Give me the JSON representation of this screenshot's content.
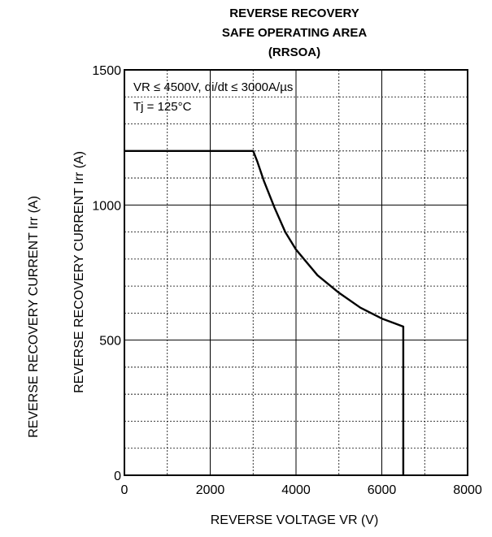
{
  "chart_data": {
    "type": "line",
    "title": [
      "REVERSE RECOVERY",
      "SAFE OPERATING AREA",
      "(RRSOA)"
    ],
    "xlabel": "REVERSE VOLTAGE VR (V)",
    "ylabel": "REVERSE RECOVERY CURRENT Irr (A)",
    "ylabel_outer": "REVERSE RECOVERY CURRENT Irr (A)",
    "xlim": [
      0,
      8000
    ],
    "ylim": [
      0,
      1500
    ],
    "x_ticks": [
      0,
      2000,
      4000,
      6000,
      8000
    ],
    "y_ticks": [
      0,
      500,
      1000,
      1500
    ],
    "x_minor": 1000,
    "y_minor": 100,
    "grid": true,
    "annotations": [
      "VR ≤ 4500V, di/dt ≤ 3000A/µs",
      "Tj = 125°C"
    ],
    "series": [
      {
        "x": [
          0,
          3000,
          3100,
          3250,
          3500,
          3750,
          4000,
          4500,
          5000,
          5500,
          6000,
          6300,
          6500,
          6500
        ],
        "y": [
          1200,
          1200,
          1160,
          1090,
          990,
          900,
          835,
          740,
          675,
          620,
          580,
          562,
          550,
          0
        ]
      }
    ]
  }
}
